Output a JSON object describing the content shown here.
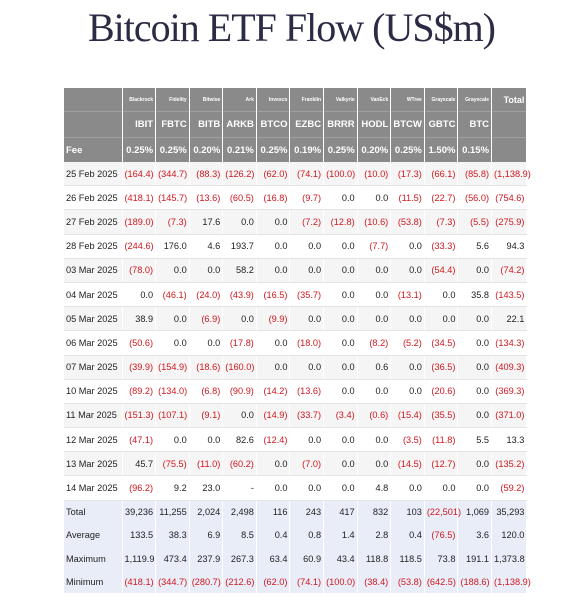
{
  "title": "Bitcoin ETF Flow (US$m)",
  "header": {
    "issuers": [
      "Blackrock",
      "Fidelity",
      "Bitwise",
      "Ark",
      "Invesco",
      "Franklin",
      "Valkyrie",
      "VanEck",
      "WTree",
      "Grayscale",
      "Grayscale"
    ],
    "total_label": "Total",
    "tickers": [
      "IBIT",
      "FBTC",
      "BITB",
      "ARKB",
      "BTCO",
      "EZBC",
      "BRRR",
      "HODL",
      "BTCW",
      "GBTC",
      "BTC"
    ]
  },
  "fee": {
    "label": "Fee",
    "values": [
      "0.25%",
      "0.25%",
      "0.20%",
      "0.21%",
      "0.25%",
      "0.19%",
      "0.25%",
      "0.20%",
      "0.25%",
      "1.50%",
      "0.15%"
    ]
  },
  "rows": [
    {
      "date": "25 Feb 2025",
      "values": [
        "(164.4)",
        "(344.7)",
        "(88.3)",
        "(126.2)",
        "(62.0)",
        "(74.1)",
        "(100.0)",
        "(10.0)",
        "(17.3)",
        "(66.1)",
        "(85.8)",
        "(1,138.9)"
      ]
    },
    {
      "date": "26 Feb 2025",
      "values": [
        "(418.1)",
        "(145.7)",
        "(13.6)",
        "(60.5)",
        "(16.8)",
        "(9.7)",
        "0.0",
        "0.0",
        "(11.5)",
        "(22.7)",
        "(56.0)",
        "(754.6)"
      ]
    },
    {
      "date": "27 Feb 2025",
      "values": [
        "(189.0)",
        "(7.3)",
        "17.6",
        "0.0",
        "0.0",
        "(7.2)",
        "(12.8)",
        "(10.6)",
        "(53.8)",
        "(7.3)",
        "(5.5)",
        "(275.9)"
      ]
    },
    {
      "date": "28 Feb 2025",
      "values": [
        "(244.6)",
        "176.0",
        "4.6",
        "193.7",
        "0.0",
        "0.0",
        "0.0",
        "(7.7)",
        "0.0",
        "(33.3)",
        "5.6",
        "94.3"
      ]
    },
    {
      "date": "03 Mar 2025",
      "values": [
        "(78.0)",
        "0.0",
        "0.0",
        "58.2",
        "0.0",
        "0.0",
        "0.0",
        "0.0",
        "0.0",
        "(54.4)",
        "0.0",
        "(74.2)"
      ]
    },
    {
      "date": "04 Mar 2025",
      "values": [
        "0.0",
        "(46.1)",
        "(24.0)",
        "(43.9)",
        "(16.5)",
        "(35.7)",
        "0.0",
        "0.0",
        "(13.1)",
        "0.0",
        "35.8",
        "(143.5)"
      ]
    },
    {
      "date": "05 Mar 2025",
      "values": [
        "38.9",
        "0.0",
        "(6.9)",
        "0.0",
        "(9.9)",
        "0.0",
        "0.0",
        "0.0",
        "0.0",
        "0.0",
        "0.0",
        "22.1"
      ]
    },
    {
      "date": "06 Mar 2025",
      "values": [
        "(50.6)",
        "0.0",
        "0.0",
        "(17.8)",
        "0.0",
        "(18.0)",
        "0.0",
        "(8.2)",
        "(5.2)",
        "(34.5)",
        "0.0",
        "(134.3)"
      ]
    },
    {
      "date": "07 Mar 2025",
      "values": [
        "(39.9)",
        "(154.9)",
        "(18.6)",
        "(160.0)",
        "0.0",
        "0.0",
        "0.0",
        "0.6",
        "0.0",
        "(36.5)",
        "0.0",
        "(409.3)"
      ]
    },
    {
      "date": "10 Mar 2025",
      "values": [
        "(89.2)",
        "(134.0)",
        "(6.8)",
        "(90.9)",
        "(14.2)",
        "(13.6)",
        "0.0",
        "0.0",
        "0.0",
        "(20.6)",
        "0.0",
        "(369.3)"
      ]
    },
    {
      "date": "11 Mar 2025",
      "values": [
        "(151.3)",
        "(107.1)",
        "(9.1)",
        "0.0",
        "(14.9)",
        "(33.7)",
        "(3.4)",
        "(0.6)",
        "(15.4)",
        "(35.5)",
        "0.0",
        "(371.0)"
      ]
    },
    {
      "date": "12 Mar 2025",
      "values": [
        "(47.1)",
        "0.0",
        "0.0",
        "82.6",
        "(12.4)",
        "0.0",
        "0.0",
        "0.0",
        "(3.5)",
        "(11.8)",
        "5.5",
        "13.3"
      ]
    },
    {
      "date": "13 Mar 2025",
      "values": [
        "45.7",
        "(75.5)",
        "(11.0)",
        "(60.2)",
        "0.0",
        "(7.0)",
        "0.0",
        "0.0",
        "(14.5)",
        "(12.7)",
        "0.0",
        "(135.2)"
      ]
    },
    {
      "date": "14 Mar 2025",
      "values": [
        "(96.2)",
        "9.2",
        "23.0",
        "-",
        "0.0",
        "0.0",
        "0.0",
        "4.8",
        "0.0",
        "0.0",
        "0.0",
        "(59.2)"
      ]
    }
  ],
  "summary": [
    {
      "label": "Total",
      "values": [
        "39,236",
        "11,255",
        "2,024",
        "2,498",
        "116",
        "243",
        "417",
        "832",
        "103",
        "(22,501)",
        "1,069",
        "35,293"
      ]
    },
    {
      "label": "Average",
      "values": [
        "133.5",
        "38.3",
        "6.9",
        "8.5",
        "0.4",
        "0.8",
        "1.4",
        "2.8",
        "0.4",
        "(76.5)",
        "3.6",
        "120.0"
      ]
    },
    {
      "label": "Maximum",
      "values": [
        "1,119.9",
        "473.4",
        "237.9",
        "267.3",
        "63.4",
        "60.9",
        "43.4",
        "118.8",
        "118.5",
        "73.8",
        "191.1",
        "1,373.8"
      ]
    },
    {
      "label": "Minimum",
      "values": [
        "(418.1)",
        "(344.7)",
        "(280.7)",
        "(212.6)",
        "(62.0)",
        "(74.1)",
        "(100.0)",
        "(38.4)",
        "(53.8)",
        "(642.5)",
        "(188.6)",
        "(1,138.9)"
      ]
    }
  ]
}
